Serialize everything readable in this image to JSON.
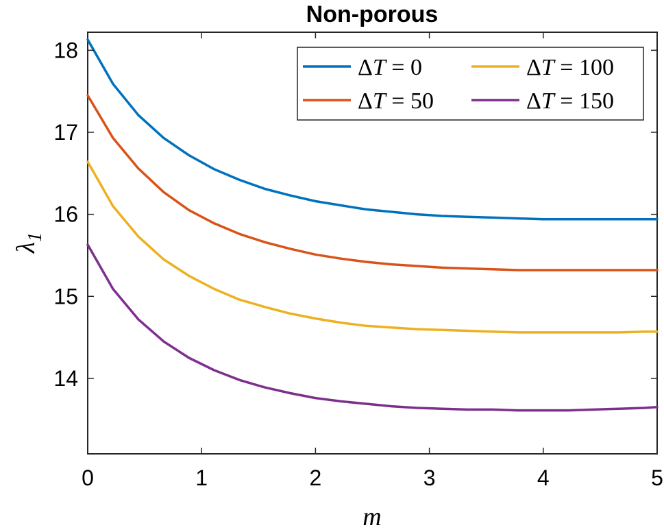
{
  "chart_data": {
    "type": "line",
    "title": "Non-porous",
    "xlabel": "m",
    "ylabel": "λ1",
    "xlim": [
      0,
      5
    ],
    "ylim": [
      13.08,
      18.22
    ],
    "xticks": [
      0,
      1,
      2,
      3,
      4,
      5
    ],
    "yticks": [
      14,
      15,
      16,
      17,
      18
    ],
    "grid": false,
    "legend_position": "top-right",
    "series": [
      {
        "name": "ΔT = 0",
        "color": "#0072BD",
        "x": [
          0,
          0.222,
          0.444,
          0.667,
          0.889,
          1.111,
          1.333,
          1.556,
          1.778,
          2.0,
          2.222,
          2.444,
          2.667,
          2.889,
          3.111,
          3.333,
          3.556,
          3.778,
          4.0,
          4.222,
          4.444,
          4.667,
          4.889,
          5.0
        ],
        "y": [
          18.13,
          17.59,
          17.21,
          16.93,
          16.72,
          16.55,
          16.42,
          16.31,
          16.23,
          16.16,
          16.11,
          16.06,
          16.03,
          16.0,
          15.98,
          15.97,
          15.96,
          15.95,
          15.94,
          15.94,
          15.94,
          15.94,
          15.94,
          15.94
        ]
      },
      {
        "name": "ΔT = 50",
        "color": "#D95319",
        "x": [
          0,
          0.222,
          0.444,
          0.667,
          0.889,
          1.111,
          1.333,
          1.556,
          1.778,
          2.0,
          2.222,
          2.444,
          2.667,
          2.889,
          3.111,
          3.333,
          3.556,
          3.778,
          4.0,
          4.222,
          4.444,
          4.667,
          4.889,
          5.0
        ],
        "y": [
          17.45,
          16.93,
          16.56,
          16.27,
          16.05,
          15.89,
          15.76,
          15.66,
          15.58,
          15.51,
          15.46,
          15.42,
          15.39,
          15.37,
          15.35,
          15.34,
          15.33,
          15.32,
          15.32,
          15.32,
          15.32,
          15.32,
          15.32,
          15.32
        ]
      },
      {
        "name": "ΔT = 100",
        "color": "#EDB120",
        "x": [
          0,
          0.222,
          0.444,
          0.667,
          0.889,
          1.111,
          1.333,
          1.556,
          1.778,
          2.0,
          2.222,
          2.444,
          2.667,
          2.889,
          3.111,
          3.333,
          3.556,
          3.778,
          4.0,
          4.222,
          4.444,
          4.667,
          4.889,
          5.0
        ],
        "y": [
          16.64,
          16.1,
          15.73,
          15.45,
          15.25,
          15.09,
          14.96,
          14.87,
          14.79,
          14.73,
          14.68,
          14.64,
          14.62,
          14.6,
          14.59,
          14.58,
          14.57,
          14.56,
          14.56,
          14.56,
          14.56,
          14.56,
          14.57,
          14.57
        ]
      },
      {
        "name": "ΔT = 150",
        "color": "#7E2F8E",
        "x": [
          0,
          0.222,
          0.444,
          0.667,
          0.889,
          1.111,
          1.333,
          1.556,
          1.778,
          2.0,
          2.222,
          2.444,
          2.667,
          2.889,
          3.111,
          3.333,
          3.556,
          3.778,
          4.0,
          4.222,
          4.444,
          4.667,
          4.889,
          5.0
        ],
        "y": [
          15.63,
          15.09,
          14.72,
          14.45,
          14.25,
          14.1,
          13.98,
          13.89,
          13.82,
          13.76,
          13.72,
          13.69,
          13.66,
          13.64,
          13.63,
          13.62,
          13.62,
          13.61,
          13.61,
          13.61,
          13.62,
          13.63,
          13.64,
          13.65
        ]
      }
    ]
  }
}
